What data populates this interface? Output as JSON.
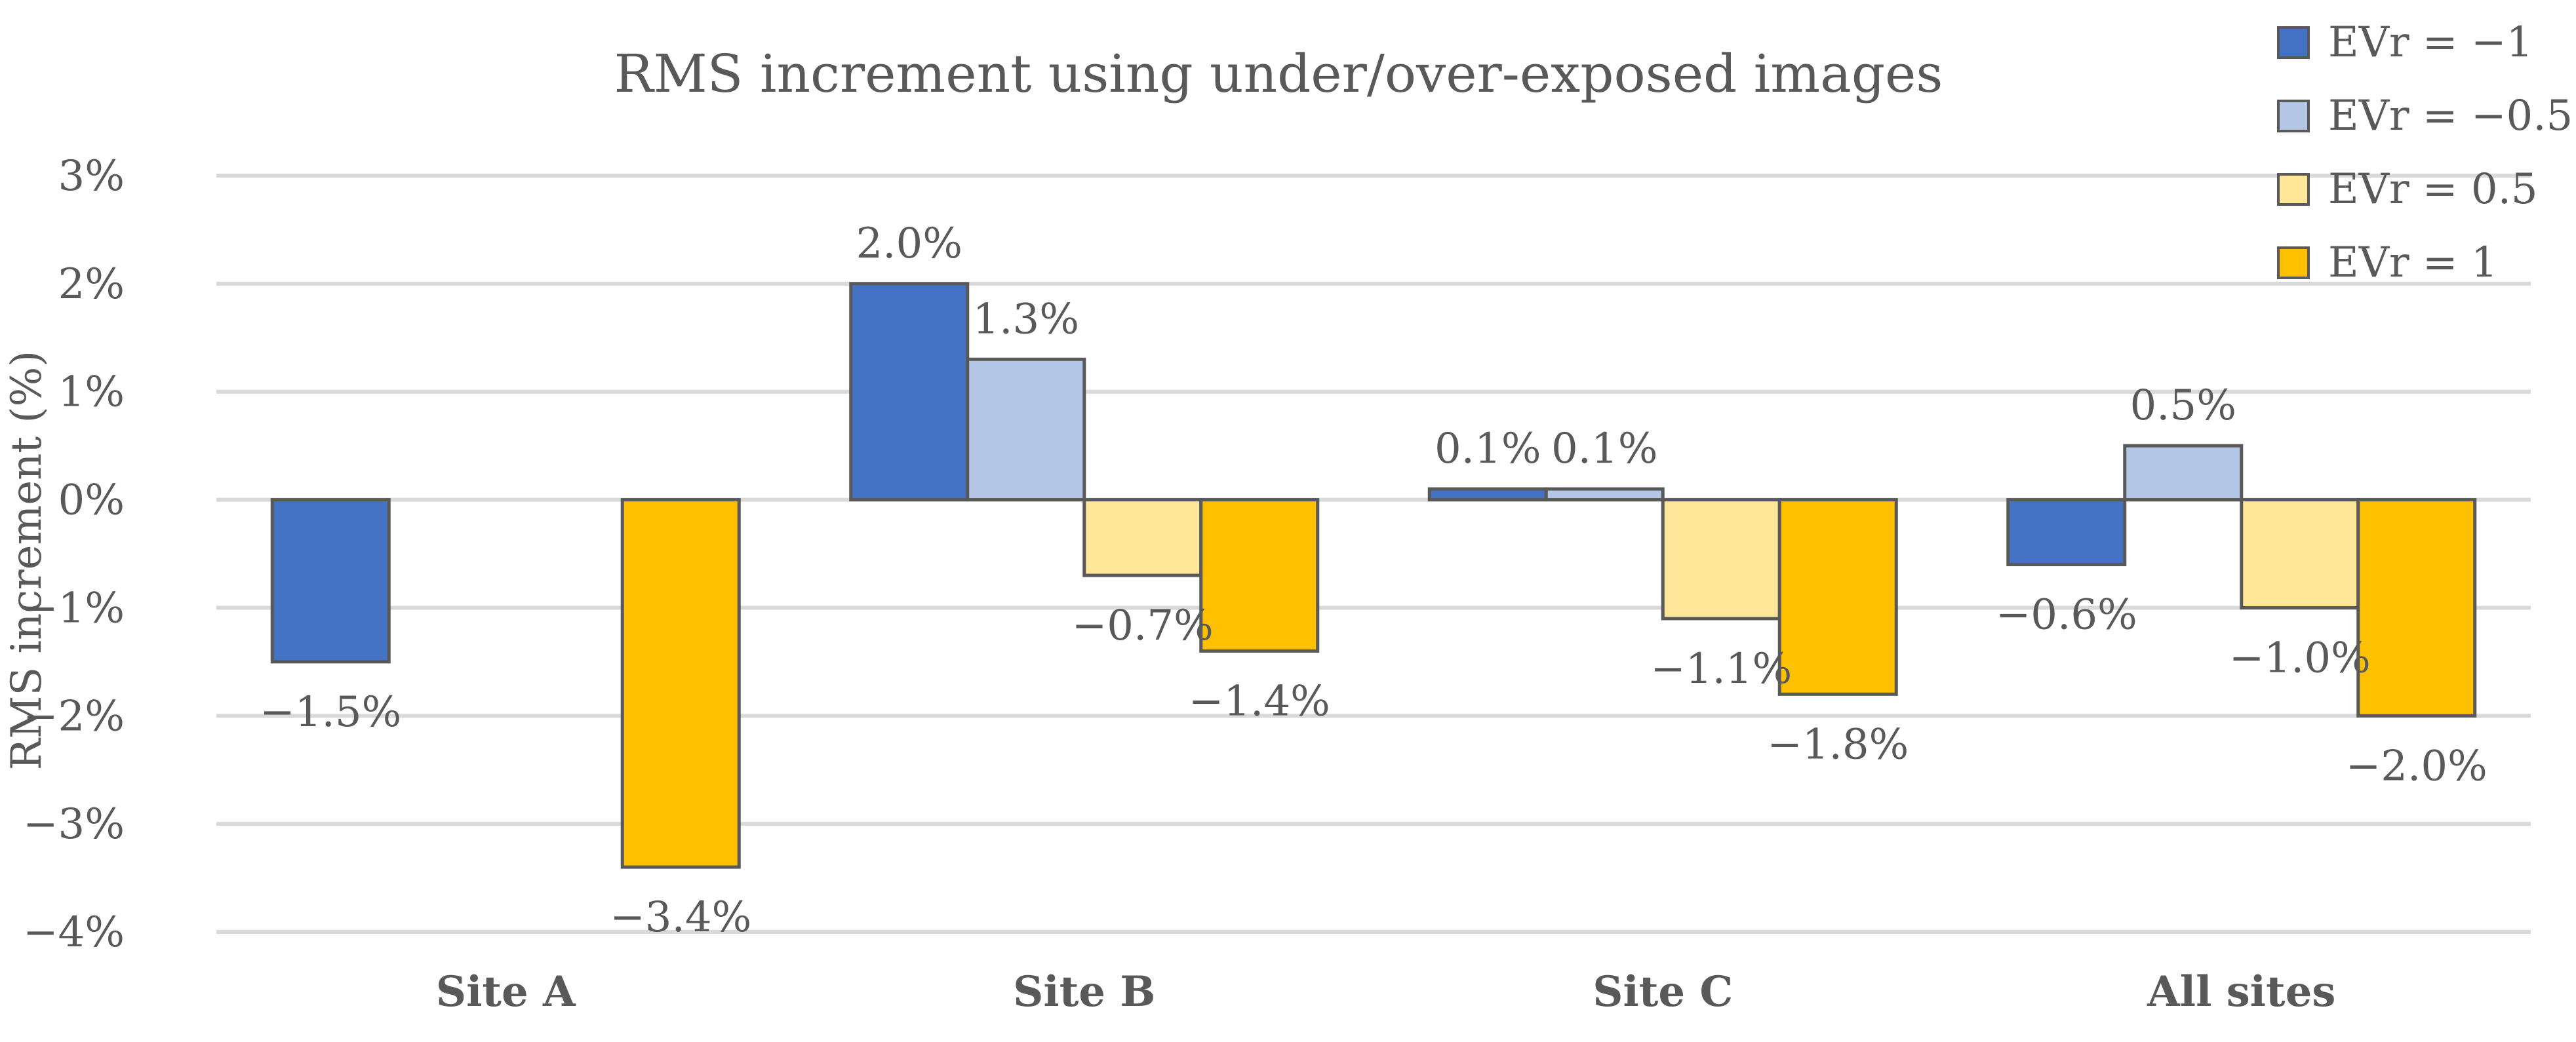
{
  "chart_data": {
    "type": "bar",
    "title": "RMS increment using under/over-exposed images",
    "xlabel": "",
    "ylabel": "RMS increment (%)",
    "ylim": [
      -4,
      3
    ],
    "yticks": [
      3,
      2,
      1,
      0,
      -1,
      -2,
      -3,
      -4
    ],
    "ytick_labels": [
      "3%",
      "2%",
      "1%",
      "0%",
      "−1%",
      "−2%",
      "−3%",
      "−4%"
    ],
    "grid": true,
    "legend_position": "top-right",
    "categories": [
      "Site A",
      "Site B",
      "Site C",
      "All sites"
    ],
    "series": [
      {
        "name": "EVr = −1",
        "color": "#4472C4",
        "values": [
          -1.5,
          2.0,
          0.1,
          -0.6
        ],
        "labels": [
          "−1.5%",
          "2.0%",
          "0.1%",
          "−0.6%"
        ]
      },
      {
        "name": "EVr = −0.5",
        "color": "#B4C7E7",
        "values": [
          0,
          1.3,
          0.1,
          0.5
        ],
        "labels": [
          null,
          "1.3%",
          "0.1%",
          "0.5%"
        ]
      },
      {
        "name": "EVr = 0.5",
        "color": "#FFE699",
        "values": [
          0,
          -0.7,
          -1.1,
          -1.0
        ],
        "labels": [
          null,
          "−0.7%",
          "−1.1%",
          "−1.0%"
        ]
      },
      {
        "name": "EVr = 1",
        "color": "#FFC000",
        "values": [
          -3.4,
          -1.4,
          -1.8,
          -2.0
        ],
        "labels": [
          "−3.4%",
          "−1.4%",
          "−1.8%",
          "−2.0%"
        ]
      }
    ]
  }
}
